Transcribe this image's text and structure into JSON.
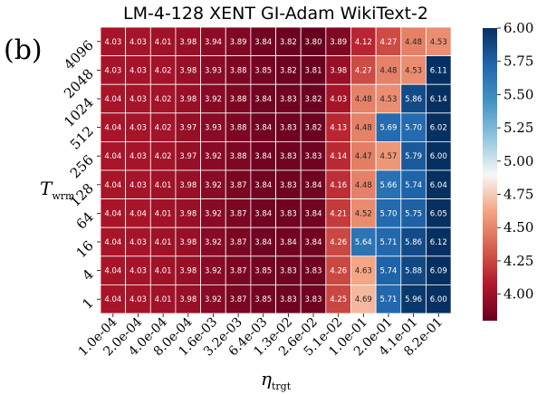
{
  "panel_label": "(b)",
  "chart_data": {
    "type": "heatmap",
    "title": "LM-4-128 XENT GI-Adam WikiText-2",
    "xlabel_main": "η",
    "xlabel_sub": "trgt",
    "ylabel_main": "T",
    "ylabel_sub": "wrm",
    "x_tick_labels": [
      "1.0e-04",
      "2.0e-04",
      "4.0e-04",
      "8.0e-04",
      "1.6e-03",
      "3.2e-03",
      "6.4e-03",
      "1.3e-02",
      "2.6e-02",
      "5.1e-02",
      "1.0e-01",
      "2.0e-01",
      "4.1e-01",
      "8.2e-01"
    ],
    "y_tick_labels": [
      "4096",
      "2048",
      "1024",
      "512",
      "256",
      "128",
      "64",
      "16",
      "4",
      "1"
    ],
    "values": [
      [
        4.03,
        4.03,
        4.01,
        3.98,
        3.94,
        3.89,
        3.84,
        3.82,
        3.8,
        3.89,
        4.12,
        4.27,
        4.48,
        4.53
      ],
      [
        4.03,
        4.03,
        4.02,
        3.98,
        3.93,
        3.88,
        3.85,
        3.82,
        3.81,
        3.98,
        4.27,
        4.48,
        4.53,
        6.11
      ],
      [
        4.04,
        4.03,
        4.02,
        3.98,
        3.92,
        3.88,
        3.84,
        3.83,
        3.82,
        4.03,
        4.48,
        4.53,
        5.86,
        6.14
      ],
      [
        4.04,
        4.03,
        4.02,
        3.97,
        3.93,
        3.88,
        3.84,
        3.83,
        3.82,
        4.13,
        4.48,
        5.69,
        5.7,
        6.02
      ],
      [
        4.04,
        4.03,
        4.02,
        3.97,
        3.92,
        3.88,
        3.84,
        3.83,
        3.83,
        4.14,
        4.47,
        4.57,
        5.79,
        6.0
      ],
      [
        4.04,
        4.03,
        4.01,
        3.98,
        3.92,
        3.87,
        3.84,
        3.83,
        3.84,
        4.16,
        4.48,
        5.66,
        5.74,
        6.04
      ],
      [
        4.04,
        4.04,
        4.01,
        3.98,
        3.92,
        3.87,
        3.84,
        3.83,
        3.84,
        4.21,
        4.52,
        5.7,
        5.75,
        6.05
      ],
      [
        4.04,
        4.03,
        4.01,
        3.98,
        3.92,
        3.87,
        3.84,
        3.84,
        3.84,
        4.26,
        5.64,
        5.71,
        5.86,
        6.12
      ],
      [
        4.04,
        4.03,
        4.01,
        3.98,
        3.92,
        3.87,
        3.85,
        3.83,
        3.83,
        4.26,
        4.63,
        5.74,
        5.88,
        6.09
      ],
      [
        4.04,
        4.03,
        4.01,
        3.98,
        3.92,
        3.87,
        3.85,
        3.83,
        3.83,
        4.25,
        4.69,
        5.71,
        5.96,
        6.0
      ]
    ],
    "colorbar": {
      "colormap": "RdBu",
      "vmin": 3.8,
      "vmax": 6.0,
      "ticks": [
        4.0,
        4.25,
        4.5,
        4.75,
        5.0,
        5.25,
        5.5,
        5.75,
        6.0
      ],
      "tick_labels": [
        "4.00",
        "4.25",
        "4.50",
        "4.75",
        "5.00",
        "5.25",
        "5.50",
        "5.75",
        "6.00"
      ]
    }
  }
}
